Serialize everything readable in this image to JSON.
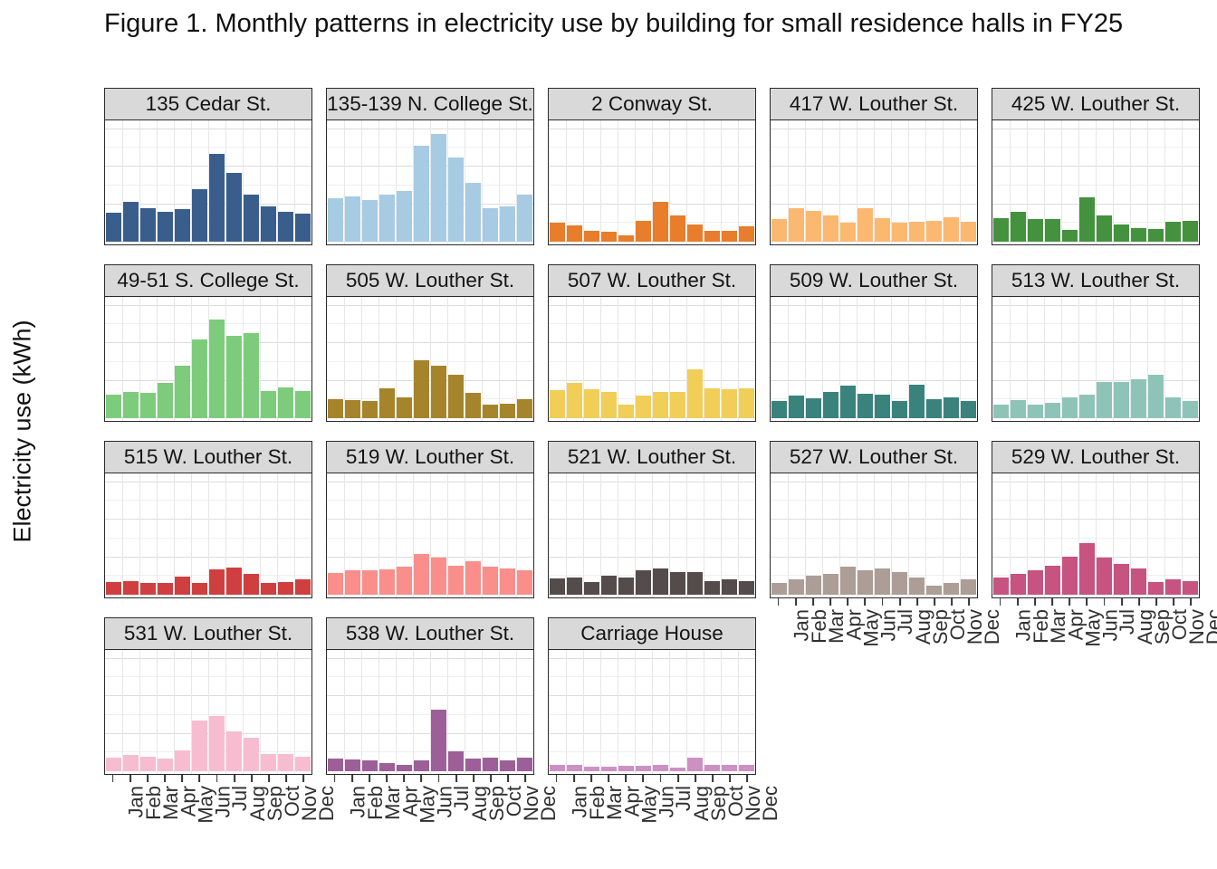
{
  "title": "Figure 1. Monthly patterns in electricity use by building for small residence halls in FY25",
  "chart_data": {
    "type": "bar",
    "title": "Figure 1. Monthly patterns in electricity use by building for small residence halls in FY25",
    "xlabel": "",
    "ylabel": "Electricity use (kWh)",
    "ylim": [
      0,
      3000
    ],
    "y_ticks": [
      0,
      1000,
      2000,
      3000
    ],
    "y_minor_ticks": [
      500,
      1500,
      2500
    ],
    "grid": true,
    "legend": "none",
    "facet_layout": {
      "columns": 5,
      "rows": 4,
      "panels_in_last_row": 3
    },
    "categories": [
      "Jan",
      "Feb",
      "Mar",
      "Apr",
      "May",
      "Jun",
      "Jul",
      "Aug",
      "Sep",
      "Oct",
      "Nov",
      "Dec"
    ],
    "units": "kWh",
    "panels": [
      {
        "label": "135 Cedar St.",
        "color": "#3A5E8C",
        "values": [
          780,
          1050,
          900,
          800,
          860,
          1400,
          2330,
          1830,
          1250,
          950,
          790,
          740
        ]
      },
      {
        "label": "135-139 N. College St.",
        "color": "#A6CBE3",
        "values": [
          1150,
          1200,
          1100,
          1250,
          1350,
          2550,
          2870,
          2250,
          1570,
          880,
          950,
          1250
        ]
      },
      {
        "label": "2 Conway St.",
        "color": "#E87D2B",
        "values": [
          500,
          430,
          300,
          270,
          160,
          550,
          1060,
          700,
          460,
          290,
          300,
          400
        ]
      },
      {
        "label": "417 W. Louther St.",
        "color": "#FBB871",
        "values": [
          600,
          880,
          820,
          700,
          500,
          880,
          620,
          500,
          520,
          560,
          650,
          540
        ]
      },
      {
        "label": "425 W. Louther St.",
        "color": "#44913E",
        "values": [
          620,
          800,
          600,
          600,
          320,
          1180,
          700,
          450,
          370,
          340,
          530,
          560
        ]
      },
      {
        "label": "49-51 S. College St.",
        "color": "#7CCC7C",
        "values": [
          620,
          700,
          680,
          950,
          1400,
          2100,
          2620,
          2200,
          2270,
          720,
          820,
          730
        ]
      },
      {
        "label": "505 W. Louther St.",
        "color": "#A5842B",
        "values": [
          500,
          480,
          450,
          800,
          550,
          1550,
          1400,
          1150,
          680,
          370,
          390,
          500
        ]
      },
      {
        "label": "507 W. Louther St.",
        "color": "#F0CE58",
        "values": [
          750,
          930,
          780,
          700,
          350,
          600,
          700,
          700,
          1300,
          790,
          760,
          790
        ]
      },
      {
        "label": "509 W. Louther St.",
        "color": "#39837C",
        "values": [
          450,
          600,
          520,
          700,
          870,
          650,
          620,
          450,
          890,
          510,
          550,
          450
        ]
      },
      {
        "label": "513 W. Louther St.",
        "color": "#8EC4B8",
        "values": [
          370,
          480,
          350,
          400,
          560,
          620,
          960,
          960,
          1030,
          1160,
          550,
          470
        ]
      },
      {
        "label": "515 W. Louther St.",
        "color": "#D03F3F",
        "values": [
          340,
          370,
          310,
          320,
          480,
          320,
          680,
          730,
          550,
          310,
          340,
          410
        ]
      },
      {
        "label": "519 W. Louther St.",
        "color": "#F98E8B",
        "values": [
          570,
          640,
          660,
          670,
          740,
          1080,
          990,
          780,
          880,
          750,
          700,
          660
        ]
      },
      {
        "label": "521 W. Louther St.",
        "color": "#544C4A",
        "values": [
          430,
          450,
          340,
          510,
          470,
          650,
          700,
          610,
          600,
          350,
          410,
          350
        ]
      },
      {
        "label": "527 W. Louther St.",
        "color": "#AC9D96",
        "values": [
          310,
          410,
          510,
          550,
          740,
          650,
          700,
          610,
          450,
          250,
          310,
          420
        ]
      },
      {
        "label": "529 W. Louther St.",
        "color": "#C65380",
        "values": [
          470,
          550,
          660,
          780,
          1010,
          1370,
          1000,
          820,
          700,
          340,
          420,
          370
        ]
      },
      {
        "label": "531 W. Louther St.",
        "color": "#F8BCD0",
        "values": [
          360,
          440,
          380,
          330,
          550,
          1360,
          1480,
          1050,
          880,
          460,
          450,
          390
        ]
      },
      {
        "label": "538 W. Louther St.",
        "color": "#9D5F98",
        "values": [
          340,
          320,
          280,
          220,
          170,
          280,
          1650,
          520,
          340,
          360,
          280,
          360
        ]
      },
      {
        "label": "Carriage House",
        "color": "#CD90C3",
        "values": [
          180,
          160,
          130,
          130,
          150,
          150,
          170,
          100,
          360,
          160,
          160,
          160
        ]
      }
    ]
  }
}
